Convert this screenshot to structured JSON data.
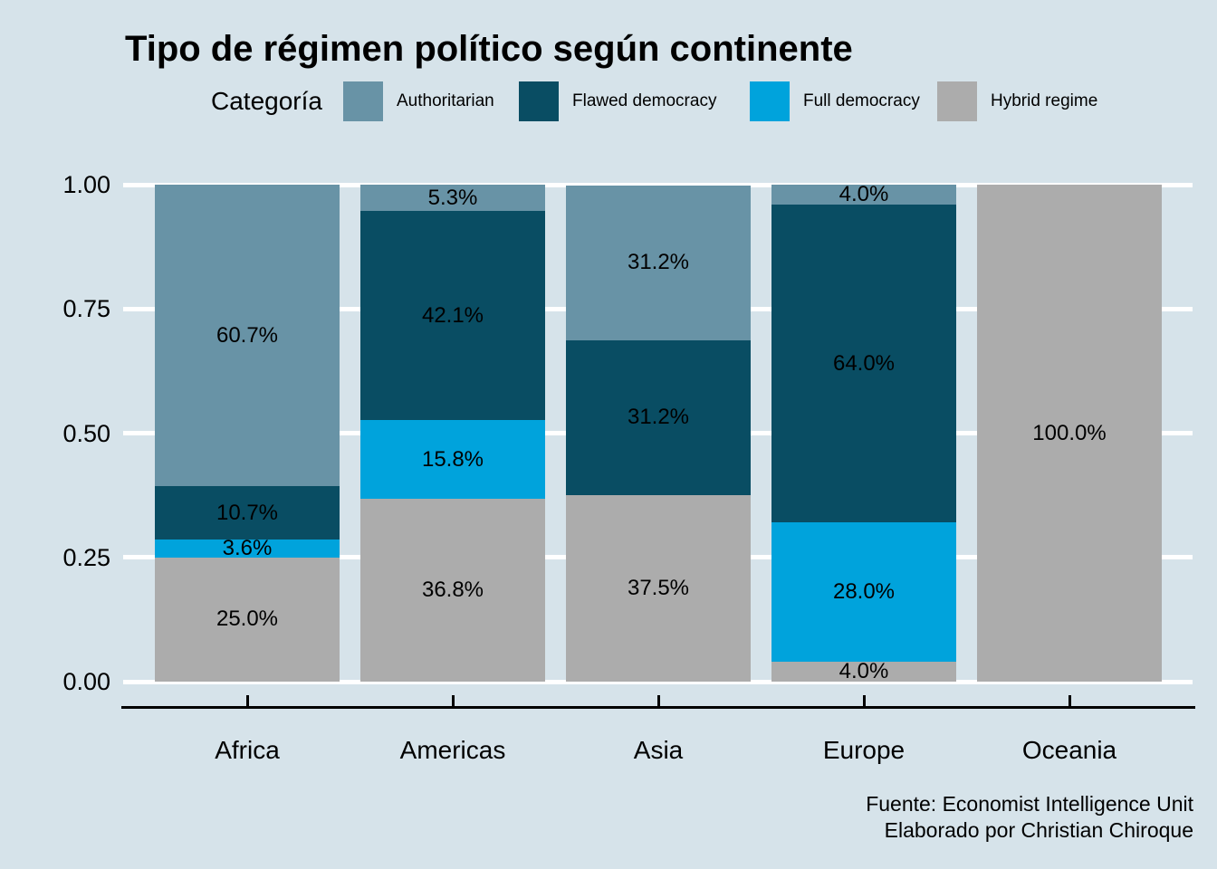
{
  "title": "Tipo de régimen político según continente",
  "legend": {
    "label": "Categoría",
    "items": [
      {
        "label": "Authoritarian"
      },
      {
        "label": "Flawed democracy"
      },
      {
        "label": "Full democracy"
      },
      {
        "label": "Hybrid regime"
      }
    ]
  },
  "chart_data": {
    "type": "bar",
    "variant": "stacked-100percent",
    "title": "Tipo de régimen político según continente",
    "categories": [
      "Africa",
      "Americas",
      "Asia",
      "Europe",
      "Oceania"
    ],
    "series": [
      {
        "name": "Authoritarian",
        "color": "#6893a6",
        "values": [
          60.7,
          5.3,
          31.2,
          4.0,
          0
        ]
      },
      {
        "name": "Flawed democracy",
        "color": "#094d63",
        "values": [
          10.7,
          42.1,
          31.2,
          64.0,
          0
        ]
      },
      {
        "name": "Full democracy",
        "color": "#00a3dc",
        "values": [
          3.6,
          15.8,
          0,
          28.0,
          0
        ]
      },
      {
        "name": "Hybrid regime",
        "color": "#acacac",
        "values": [
          25.0,
          36.8,
          37.5,
          4.0,
          100.0
        ]
      }
    ],
    "stack_order_bottom_to_top": [
      "Hybrid regime",
      "Full democracy",
      "Flawed democracy",
      "Authoritarian"
    ],
    "segment_labels": {
      "Africa": [
        "60.7%",
        "10.7%",
        "3.6%",
        "25.0%"
      ],
      "Americas": [
        "5.3%",
        "42.1%",
        "15.8%",
        "36.8%"
      ],
      "Asia": [
        "31.2%",
        "31.2%",
        "37.5%"
      ],
      "Europe": [
        "4.0%",
        "64.0%",
        "28.0%",
        "4.0%"
      ],
      "Oceania": [
        "100.0%"
      ]
    },
    "label_format": "one_decimal_percent",
    "y_ticks": [
      "1.00",
      "0.75",
      "0.50",
      "0.25",
      "0.00"
    ],
    "ylim": [
      0,
      1
    ],
    "grid": "horizontal_major_white",
    "legend_position": "top"
  },
  "footer": {
    "line1": "Fuente: Economist Intelligence Unit",
    "line2": "Elaborado por Christian Chiroque"
  },
  "theme": {
    "background": "#d6e3ea",
    "gridline": "#ffffff",
    "axis_line": "#000000",
    "text": "#000000"
  }
}
